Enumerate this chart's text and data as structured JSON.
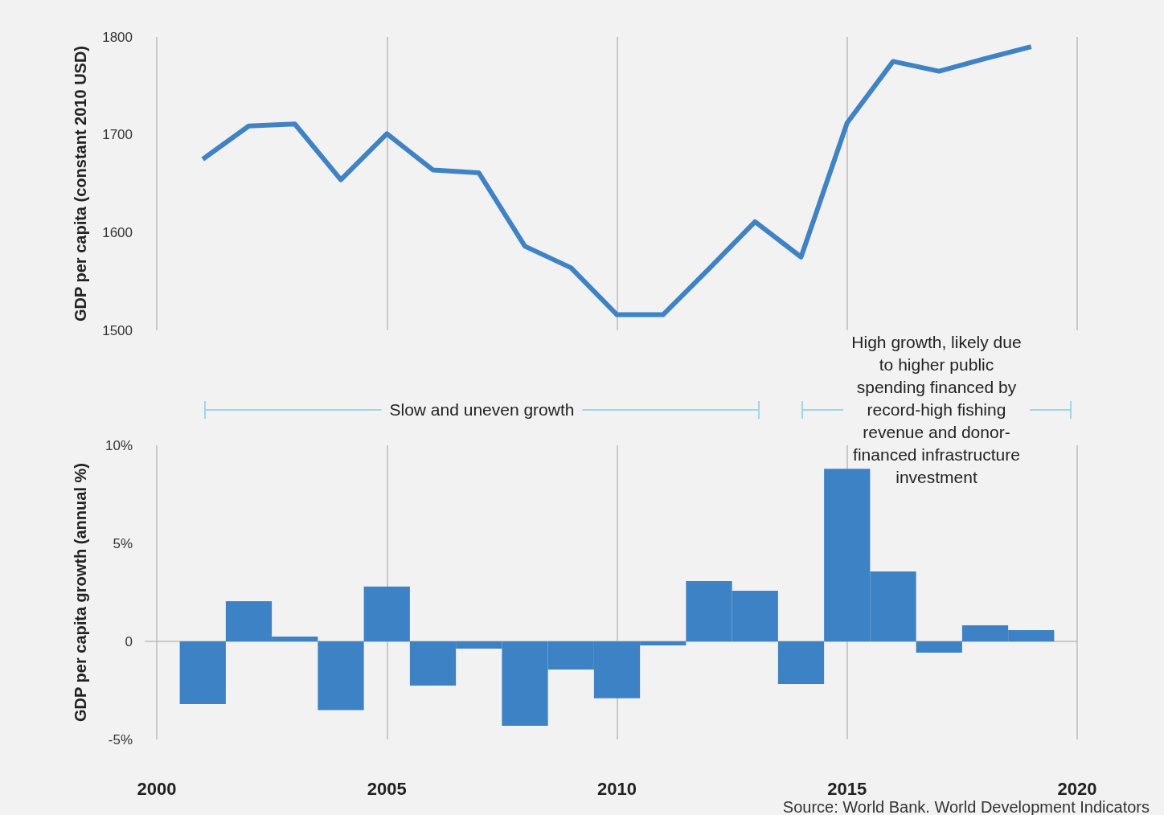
{
  "chart_data": [
    {
      "type": "line",
      "ylabel": "GDP per capita (constant 2010 USD)",
      "x": [
        2001,
        2002,
        2003,
        2004,
        2005,
        2006,
        2007,
        2008,
        2009,
        2010,
        2011,
        2012,
        2013,
        2014,
        2015,
        2016,
        2017,
        2018,
        2019
      ],
      "values": [
        1675,
        1709,
        1711,
        1654,
        1701,
        1664,
        1661,
        1586,
        1564,
        1516,
        1516,
        1563,
        1611,
        1575,
        1712,
        1775,
        1765,
        1778,
        1790
      ],
      "color": "#3f83c5",
      "marker": "none",
      "xlim": [
        2000,
        2020
      ],
      "xticks": [
        2000,
        2005,
        2010,
        2015,
        2020
      ],
      "ylim": [
        1500,
        1800
      ],
      "yticks": [
        1500,
        1600,
        1700,
        1800
      ],
      "grid": "x",
      "tick_labels": "y"
    },
    {
      "type": "bar",
      "ylabel": "GDP per capita growth (annual %)",
      "x": [
        2001,
        2002,
        2003,
        2004,
        2005,
        2006,
        2007,
        2008,
        2009,
        2010,
        2011,
        2012,
        2013,
        2014,
        2015,
        2016,
        2017,
        2018,
        2019
      ],
      "values": [
        -3.2,
        2.05,
        0.25,
        -3.5,
        2.8,
        -2.25,
        -0.37,
        -4.3,
        -1.43,
        -2.9,
        -0.2,
        3.07,
        2.58,
        -2.17,
        8.8,
        3.57,
        -0.57,
        0.82,
        0.57
      ],
      "color": "#3d82c4",
      "xlim": [
        2000,
        2020
      ],
      "xticks": [
        2000,
        2005,
        2010,
        2015,
        2020
      ],
      "ylim": [
        -5,
        10
      ],
      "yticks": [
        {
          "value": -5,
          "label": "-5%"
        },
        0,
        {
          "value": 5,
          "label": "5%"
        },
        {
          "value": 10,
          "label": "10%"
        }
      ],
      "grid": "x",
      "ref_lines": [
        {
          "axis": "y",
          "value": 0,
          "color": "#bbbbbb"
        }
      ],
      "annotations": [
        "Slow and uneven growth",
        "High growth, likely due to higher public spending financed by record-high fishing revenue and donor- financed infrastructure investment",
        "Source: World Bank. World Development Indicators"
      ]
    }
  ]
}
